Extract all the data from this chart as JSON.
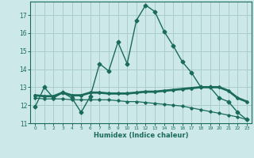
{
  "xlabel": "Humidex (Indice chaleur)",
  "background_color": "#cce8e8",
  "grid_color": "#aacccc",
  "line_color": "#1a6b5a",
  "x_values": [
    0,
    1,
    2,
    3,
    4,
    5,
    6,
    7,
    8,
    9,
    10,
    11,
    12,
    13,
    14,
    15,
    16,
    17,
    18,
    19,
    20,
    21,
    22,
    23
  ],
  "y_jagged": [
    11.9,
    13.0,
    12.4,
    12.7,
    12.4,
    11.6,
    12.5,
    14.3,
    13.9,
    15.5,
    14.3,
    16.7,
    17.55,
    17.2,
    16.1,
    15.3,
    14.4,
    13.8,
    13.0,
    13.0,
    12.4,
    12.2,
    11.6,
    11.2
  ],
  "y_flat_upper": [
    12.55,
    12.5,
    12.5,
    12.7,
    12.55,
    12.55,
    12.7,
    12.7,
    12.65,
    12.65,
    12.65,
    12.7,
    12.75,
    12.75,
    12.8,
    12.85,
    12.9,
    12.95,
    13.0,
    13.0,
    13.0,
    12.8,
    12.4,
    12.2
  ],
  "y_flat_lower": [
    12.4,
    12.35,
    12.35,
    12.35,
    12.3,
    12.3,
    12.3,
    12.3,
    12.3,
    12.25,
    12.2,
    12.2,
    12.15,
    12.1,
    12.05,
    12.0,
    11.95,
    11.85,
    11.75,
    11.65,
    11.55,
    11.45,
    11.35,
    11.2
  ],
  "ylim": [
    11.0,
    17.75
  ],
  "yticks": [
    11,
    12,
    13,
    14,
    15,
    16,
    17
  ],
  "xlim": [
    -0.5,
    23.5
  ],
  "xtick_labels": [
    "0",
    "1",
    "2",
    "3",
    "4",
    "5",
    "6",
    "7",
    "8",
    "9",
    "10",
    "11",
    "12",
    "13",
    "14",
    "15",
    "16",
    "17",
    "18",
    "19",
    "20",
    "21",
    "22",
    "23"
  ]
}
